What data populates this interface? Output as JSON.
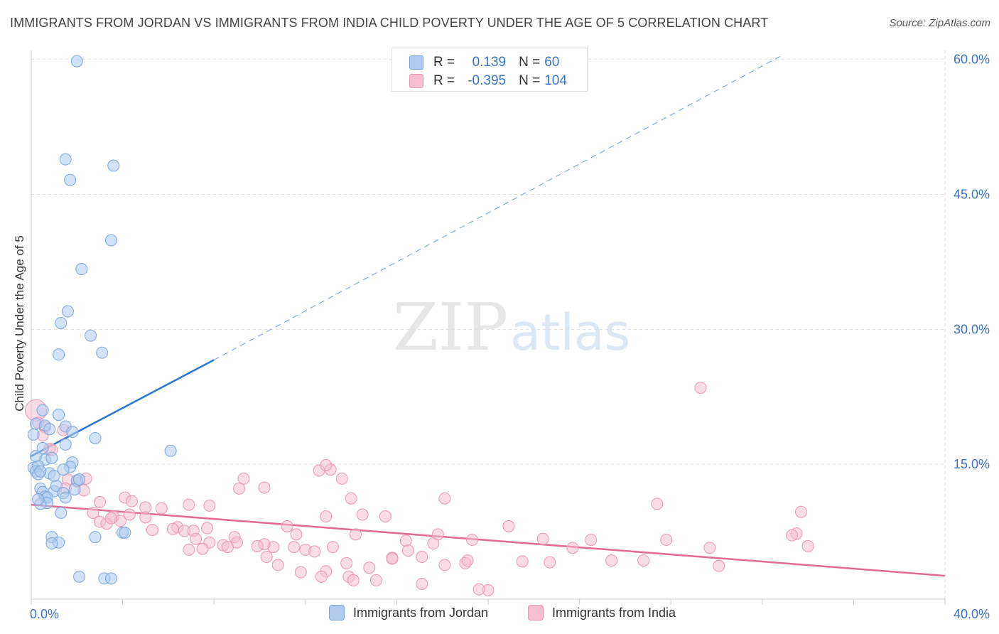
{
  "title": "IMMIGRANTS FROM JORDAN VS IMMIGRANTS FROM INDIA CHILD POVERTY UNDER THE AGE OF 5 CORRELATION CHART",
  "source": "Source: ZipAtlas.com",
  "watermark": {
    "zip": "ZIP",
    "atlas": "atlas"
  },
  "stats": {
    "jordan": {
      "r_label": "R =",
      "r": "0.139",
      "n_label": "N =",
      "n": "60"
    },
    "india": {
      "r_label": "R =",
      "r": "-0.395",
      "n_label": "N =",
      "n": "104"
    }
  },
  "legend": {
    "jordan": "Immigrants from Jordan",
    "india": "Immigrants from India"
  },
  "colors": {
    "jordan_fill": "#aecbef",
    "jordan_stroke": "#7ba6dc",
    "jordan_line": "#2f76cf",
    "india_fill": "#f6bfd1",
    "india_stroke": "#e996b2",
    "india_line": "#e26b96",
    "tick_label": "#3a74c8",
    "grid": "#dddddd"
  },
  "chart_data": {
    "type": "scatter",
    "title": "IMMIGRANTS FROM JORDAN VS IMMIGRANTS FROM INDIA CHILD POVERTY UNDER THE AGE OF 5 CORRELATION CHART",
    "xlabel": "",
    "ylabel": "Child Poverty Under the Age of 5",
    "xlim": [
      0,
      40
    ],
    "ylim": [
      0,
      61
    ],
    "x_tick_labels": [
      {
        "value": 0,
        "label": "0.0%"
      },
      {
        "value": 40,
        "label": "40.0%"
      }
    ],
    "y_tick_labels": [
      {
        "value": 15,
        "label": "15.0%"
      },
      {
        "value": 30,
        "label": "30.0%"
      },
      {
        "value": 45,
        "label": "45.0%"
      },
      {
        "value": 60,
        "label": "60.0%"
      }
    ],
    "x_minor_ticks": [
      0,
      4,
      8,
      12,
      16,
      20,
      24,
      28,
      32,
      36,
      40
    ],
    "grid": true,
    "legend_position": "bottom",
    "series": [
      {
        "name": "Immigrants from Jordan",
        "points": [
          [
            2.0,
            59.8
          ],
          [
            1.5,
            48.9
          ],
          [
            3.6,
            48.2
          ],
          [
            1.7,
            46.6
          ],
          [
            3.5,
            39.9
          ],
          [
            2.2,
            36.7
          ],
          [
            1.6,
            32.0
          ],
          [
            1.3,
            30.7
          ],
          [
            2.6,
            29.3
          ],
          [
            1.2,
            27.2
          ],
          [
            3.1,
            27.4
          ],
          [
            0.5,
            21.0
          ],
          [
            1.2,
            20.5
          ],
          [
            0.2,
            19.5
          ],
          [
            0.6,
            19.3
          ],
          [
            1.5,
            19.2
          ],
          [
            1.8,
            18.6
          ],
          [
            0.1,
            18.3
          ],
          [
            2.8,
            17.9
          ],
          [
            6.1,
            16.5
          ],
          [
            0.5,
            16.8
          ],
          [
            1.5,
            17.2
          ],
          [
            0.6,
            15.5
          ],
          [
            0.9,
            15.7
          ],
          [
            1.8,
            15.2
          ],
          [
            0.1,
            14.6
          ],
          [
            0.3,
            14.8
          ],
          [
            0.2,
            14.2
          ],
          [
            0.3,
            13.9
          ],
          [
            0.8,
            14.0
          ],
          [
            1.0,
            13.7
          ],
          [
            1.7,
            14.7
          ],
          [
            1.4,
            14.4
          ],
          [
            2.0,
            13.2
          ],
          [
            2.1,
            13.3
          ],
          [
            0.4,
            12.3
          ],
          [
            1.0,
            12.0
          ],
          [
            1.1,
            12.6
          ],
          [
            1.9,
            12.2
          ],
          [
            0.5,
            11.9
          ],
          [
            0.6,
            11.4
          ],
          [
            0.7,
            11.3
          ],
          [
            1.4,
            11.8
          ],
          [
            1.5,
            11.3
          ],
          [
            0.7,
            10.7
          ],
          [
            0.4,
            10.6
          ],
          [
            1.3,
            9.6
          ],
          [
            0.9,
            6.9
          ],
          [
            1.2,
            6.3
          ],
          [
            0.9,
            6.2
          ],
          [
            2.8,
            6.9
          ],
          [
            4.0,
            7.4
          ],
          [
            4.1,
            7.4
          ],
          [
            2.1,
            2.5
          ],
          [
            3.2,
            2.3
          ],
          [
            3.5,
            2.3
          ],
          [
            0.2,
            15.9
          ],
          [
            0.4,
            14.2
          ],
          [
            0.8,
            18.9
          ],
          [
            0.3,
            11.1
          ]
        ]
      },
      {
        "name": "Immigrants from India",
        "points": [
          [
            0.2,
            21.0
          ],
          [
            0.3,
            19.6
          ],
          [
            0.6,
            19.1
          ],
          [
            1.4,
            18.8
          ],
          [
            0.8,
            16.7
          ],
          [
            0.9,
            16.6
          ],
          [
            13.1,
            14.4
          ],
          [
            12.6,
            14.3
          ],
          [
            13.6,
            13.4
          ],
          [
            9.3,
            13.4
          ],
          [
            2.0,
            13.1
          ],
          [
            1.6,
            13.3
          ],
          [
            1.5,
            12.3
          ],
          [
            2.3,
            12.1
          ],
          [
            9.1,
            12.3
          ],
          [
            10.2,
            12.4
          ],
          [
            18.1,
            11.2
          ],
          [
            14.0,
            11.2
          ],
          [
            3.0,
            10.8
          ],
          [
            4.1,
            11.3
          ],
          [
            4.4,
            10.9
          ],
          [
            27.4,
            10.6
          ],
          [
            12.9,
            14.9
          ],
          [
            6.9,
            10.5
          ],
          [
            7.8,
            10.4
          ],
          [
            5.0,
            10.2
          ],
          [
            5.7,
            10.1
          ],
          [
            2.7,
            9.6
          ],
          [
            3.6,
            9.2
          ],
          [
            4.3,
            9.4
          ],
          [
            14.5,
            9.4
          ],
          [
            15.5,
            9.2
          ],
          [
            12.9,
            9.2
          ],
          [
            33.7,
            9.7
          ],
          [
            3.0,
            8.6
          ],
          [
            3.3,
            8.4
          ],
          [
            3.9,
            8.7
          ],
          [
            3.5,
            9.0
          ],
          [
            5.0,
            9.1
          ],
          [
            6.4,
            8.0
          ],
          [
            6.2,
            7.8
          ],
          [
            11.2,
            8.1
          ],
          [
            20.9,
            8.1
          ],
          [
            5.3,
            7.7
          ],
          [
            6.7,
            7.6
          ],
          [
            7.1,
            7.6
          ],
          [
            7.7,
            7.9
          ],
          [
            11.6,
            7.2
          ],
          [
            14.2,
            7.2
          ],
          [
            17.8,
            7.2
          ],
          [
            33.5,
            7.3
          ],
          [
            33.3,
            7.1
          ],
          [
            8.9,
            6.9
          ],
          [
            7.2,
            6.7
          ],
          [
            16.4,
            6.5
          ],
          [
            17.6,
            6.2
          ],
          [
            19.3,
            6.6
          ],
          [
            22.4,
            6.7
          ],
          [
            24.5,
            6.6
          ],
          [
            11.5,
            5.8
          ],
          [
            10.6,
            5.8
          ],
          [
            10.2,
            6.1
          ],
          [
            12.0,
            5.5
          ],
          [
            13.2,
            5.8
          ],
          [
            9.0,
            6.3
          ],
          [
            8.4,
            6.0
          ],
          [
            7.8,
            6.3
          ],
          [
            7.5,
            5.6
          ],
          [
            6.9,
            5.5
          ],
          [
            16.5,
            5.4
          ],
          [
            23.7,
            5.7
          ],
          [
            29.7,
            5.7
          ],
          [
            34.0,
            5.9
          ],
          [
            8.6,
            5.8
          ],
          [
            9.9,
            5.9
          ],
          [
            12.4,
            5.3
          ],
          [
            15.8,
            4.6
          ],
          [
            10.3,
            4.7
          ],
          [
            13.8,
            4.0
          ],
          [
            14.8,
            3.5
          ],
          [
            10.8,
            3.8
          ],
          [
            18.1,
            3.8
          ],
          [
            21.5,
            4.2
          ],
          [
            22.7,
            4.1
          ],
          [
            25.4,
            4.3
          ],
          [
            26.8,
            4.3
          ],
          [
            30.1,
            3.7
          ],
          [
            15.8,
            4.5
          ],
          [
            17.1,
            4.7
          ],
          [
            19.0,
            4.0
          ],
          [
            19.1,
            4.3
          ],
          [
            13.9,
            2.5
          ],
          [
            14.1,
            2.1
          ],
          [
            15.1,
            2.1
          ],
          [
            12.9,
            3.1
          ],
          [
            12.7,
            2.5
          ],
          [
            11.8,
            3.0
          ],
          [
            17.1,
            1.7
          ],
          [
            20.0,
            1.0
          ],
          [
            19.6,
            1.1
          ],
          [
            27.8,
            6.6
          ],
          [
            29.3,
            23.5
          ],
          [
            2.4,
            13.4
          ],
          [
            0.5,
            18.2
          ]
        ]
      }
    ],
    "trend_lines": [
      {
        "series": "Immigrants from Jordan",
        "x": [
          0,
          8.0
        ],
        "y": [
          15.9,
          26.6
        ],
        "extended_x": [
          8.0,
          32.9
        ],
        "extended_y": [
          26.6,
          60.5
        ]
      },
      {
        "series": "Immigrants from India",
        "x": [
          0,
          40
        ],
        "y": [
          10.5,
          2.6
        ]
      }
    ]
  }
}
